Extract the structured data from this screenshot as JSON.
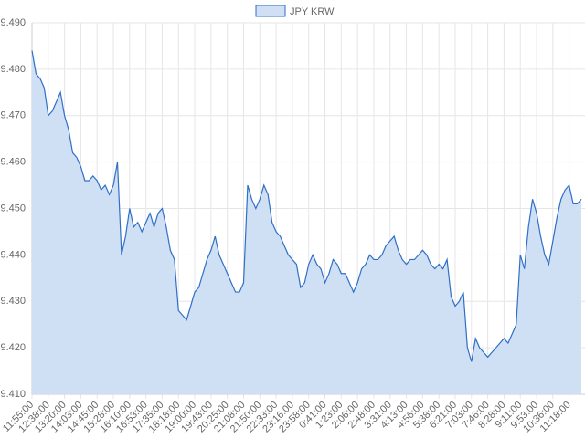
{
  "chart_data": {
    "type": "area",
    "categories": [
      "11:55:00",
      null,
      null,
      null,
      "12:38:00",
      null,
      null,
      null,
      "13:20:00",
      null,
      null,
      null,
      "14:03:00",
      null,
      null,
      null,
      "14:45:00",
      null,
      null,
      null,
      "15:28:00",
      null,
      null,
      null,
      "16:10:00",
      null,
      null,
      null,
      "16:53:00",
      null,
      null,
      null,
      "17:35:00",
      null,
      null,
      null,
      "18:18:00",
      null,
      null,
      null,
      "19:00:00",
      null,
      null,
      null,
      "19:43:00",
      null,
      null,
      null,
      "20:25:00",
      null,
      null,
      null,
      "21:08:00",
      null,
      null,
      null,
      "21:50:00",
      null,
      null,
      null,
      "22:33:00",
      null,
      null,
      null,
      "23:16:00",
      null,
      null,
      null,
      "23:58:00",
      null,
      null,
      null,
      "0:41:00",
      null,
      null,
      null,
      "1:23:00",
      null,
      null,
      null,
      "2:06:00",
      null,
      null,
      null,
      "2:48:00",
      null,
      null,
      null,
      "3:31:00",
      null,
      null,
      null,
      "4:13:00",
      null,
      null,
      null,
      "4:56:00",
      null,
      null,
      null,
      "5:38:00",
      null,
      null,
      null,
      "6:21:00",
      null,
      null,
      null,
      "7:03:00",
      null,
      null,
      null,
      "7:46:00",
      null,
      null,
      null,
      "8:28:00",
      null,
      null,
      null,
      "9:11:00",
      null,
      null,
      null,
      "9:53:00",
      null,
      null,
      null,
      "10:36:00",
      null,
      null,
      null,
      "11:18:00",
      null,
      null,
      null
    ],
    "series": [
      {
        "name": "JPY KRW",
        "color": "#2f6fc6",
        "fill": "#cfe0f5",
        "values": [
          9.484,
          9.479,
          9.478,
          9.476,
          9.47,
          9.471,
          9.473,
          9.475,
          9.47,
          9.467,
          9.462,
          9.461,
          9.459,
          9.456,
          9.456,
          9.457,
          9.456,
          9.454,
          9.455,
          9.453,
          9.455,
          9.46,
          9.44,
          9.444,
          9.45,
          9.446,
          9.447,
          9.445,
          9.447,
          9.449,
          9.446,
          9.449,
          9.45,
          9.446,
          9.441,
          9.439,
          9.428,
          9.427,
          9.426,
          9.429,
          9.432,
          9.433,
          9.436,
          9.439,
          9.441,
          9.444,
          9.44,
          9.438,
          9.436,
          9.434,
          9.432,
          9.432,
          9.434,
          9.455,
          9.452,
          9.45,
          9.452,
          9.455,
          9.453,
          9.447,
          9.445,
          9.444,
          9.442,
          9.44,
          9.439,
          9.438,
          9.433,
          9.434,
          9.438,
          9.44,
          9.438,
          9.437,
          9.434,
          9.436,
          9.439,
          9.438,
          9.436,
          9.436,
          9.434,
          9.432,
          9.434,
          9.437,
          9.438,
          9.44,
          9.439,
          9.439,
          9.44,
          9.442,
          9.443,
          9.444,
          9.441,
          9.439,
          9.438,
          9.439,
          9.439,
          9.44,
          9.441,
          9.44,
          9.438,
          9.437,
          9.438,
          9.437,
          9.439,
          9.431,
          9.429,
          9.43,
          9.432,
          9.42,
          9.417,
          9.422,
          9.42,
          9.419,
          9.418,
          9.419,
          9.42,
          9.421,
          9.422,
          9.421,
          9.423,
          9.425,
          9.44,
          9.437,
          9.446,
          9.452,
          9.449,
          9.444,
          9.44,
          9.438,
          9.443,
          9.448,
          9.452,
          9.454,
          9.455,
          9.451,
          9.451,
          9.452
        ]
      }
    ],
    "ylim": [
      9.41,
      9.49
    ],
    "yticks": [
      {
        "value": 9.41,
        "label": "9.410"
      },
      {
        "value": 9.42,
        "label": "9.420"
      },
      {
        "value": 9.43,
        "label": "9.430"
      },
      {
        "value": 9.44,
        "label": "9.440"
      },
      {
        "value": 9.45,
        "label": "9.450"
      },
      {
        "value": 9.46,
        "label": "9.460"
      },
      {
        "value": 9.47,
        "label": "9.470"
      },
      {
        "value": 9.48,
        "label": "9.480"
      },
      {
        "value": 9.49,
        "label": "9.490"
      }
    ],
    "grid": true,
    "legend": "top"
  }
}
